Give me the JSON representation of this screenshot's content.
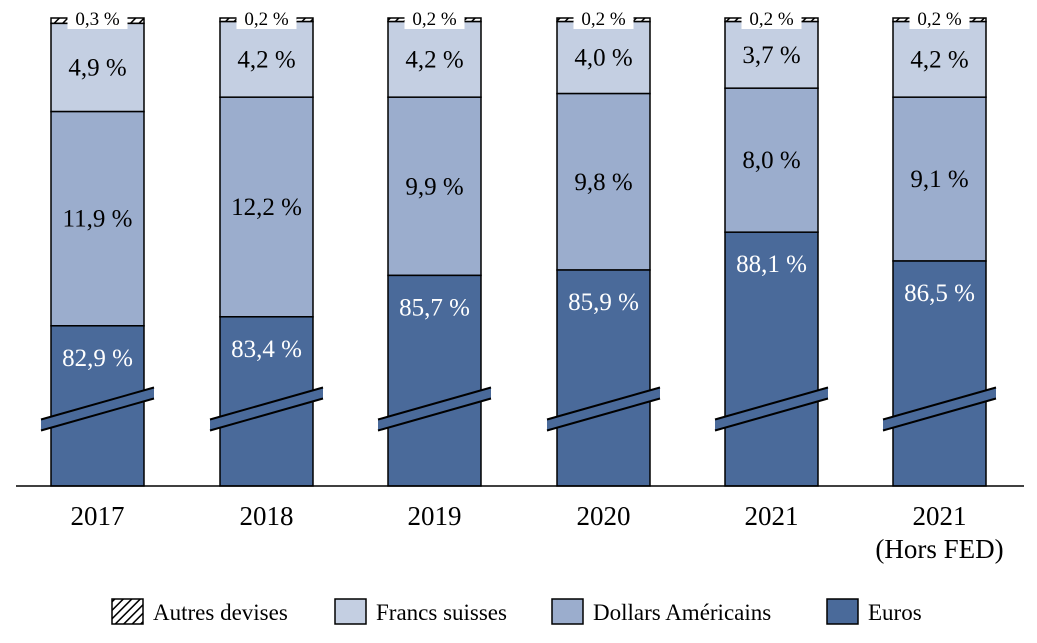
{
  "chart_data": {
    "type": "bar",
    "stacked": true,
    "normalized_100": true,
    "axis_break": true,
    "categories": [
      "2017",
      "2018",
      "2019",
      "2020",
      "2021",
      "2021\n(Hors FED)"
    ],
    "series": [
      {
        "name": "Euros",
        "values": [
          82.9,
          83.4,
          85.7,
          85.9,
          88.1,
          86.5
        ],
        "labels": [
          "82,9 %",
          "83,4 %",
          "85,7 %",
          "85,9 %",
          "88,1 %",
          "86,5 %"
        ],
        "color": "#4a6a9a"
      },
      {
        "name": "Dollars Américains",
        "values": [
          11.9,
          12.2,
          9.9,
          9.8,
          8.0,
          9.1
        ],
        "labels": [
          "11,9 %",
          "12,2 %",
          "9,9 %",
          "9,8 %",
          "8,0 %",
          "9,1 %"
        ],
        "color": "#9badcd"
      },
      {
        "name": "Francs suisses",
        "values": [
          4.9,
          4.2,
          4.2,
          4.0,
          3.7,
          4.2
        ],
        "labels": [
          "4,9 %",
          "4,2 %",
          "4,2 %",
          "4,0 %",
          "3,7 %",
          "4,2 %"
        ],
        "color": "#c4cfe2"
      },
      {
        "name": "Autres devises",
        "values": [
          0.3,
          0.2,
          0.2,
          0.2,
          0.2,
          0.2
        ],
        "labels": [
          "0,3 %",
          "0,2 %",
          "0,2 %",
          "0,2 %",
          "0,2 %",
          "0,2 %"
        ],
        "color": "hatched"
      }
    ],
    "legend": {
      "position": "bottom",
      "order": [
        "Autres devises",
        "Francs suisses",
        "Dollars Américains",
        "Euros"
      ]
    },
    "title": "",
    "xlabel": "",
    "ylabel": "",
    "grid": false,
    "label_colors": {
      "Euros": "#ffffff",
      "default": "#000000"
    }
  }
}
